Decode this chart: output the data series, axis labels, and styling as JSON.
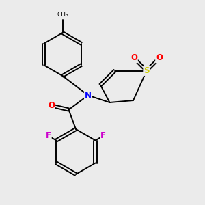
{
  "background_color": "#ebebeb",
  "fig_size": [
    3.0,
    3.0
  ],
  "dpi": 100,
  "atom_colors": {
    "N": "#0000ff",
    "O": "#ff0000",
    "F": "#cc00cc",
    "S": "#cccc00",
    "C": "#000000"
  },
  "bond_color": "#000000",
  "bond_width": 1.4,
  "font_size_atoms": 8.5
}
